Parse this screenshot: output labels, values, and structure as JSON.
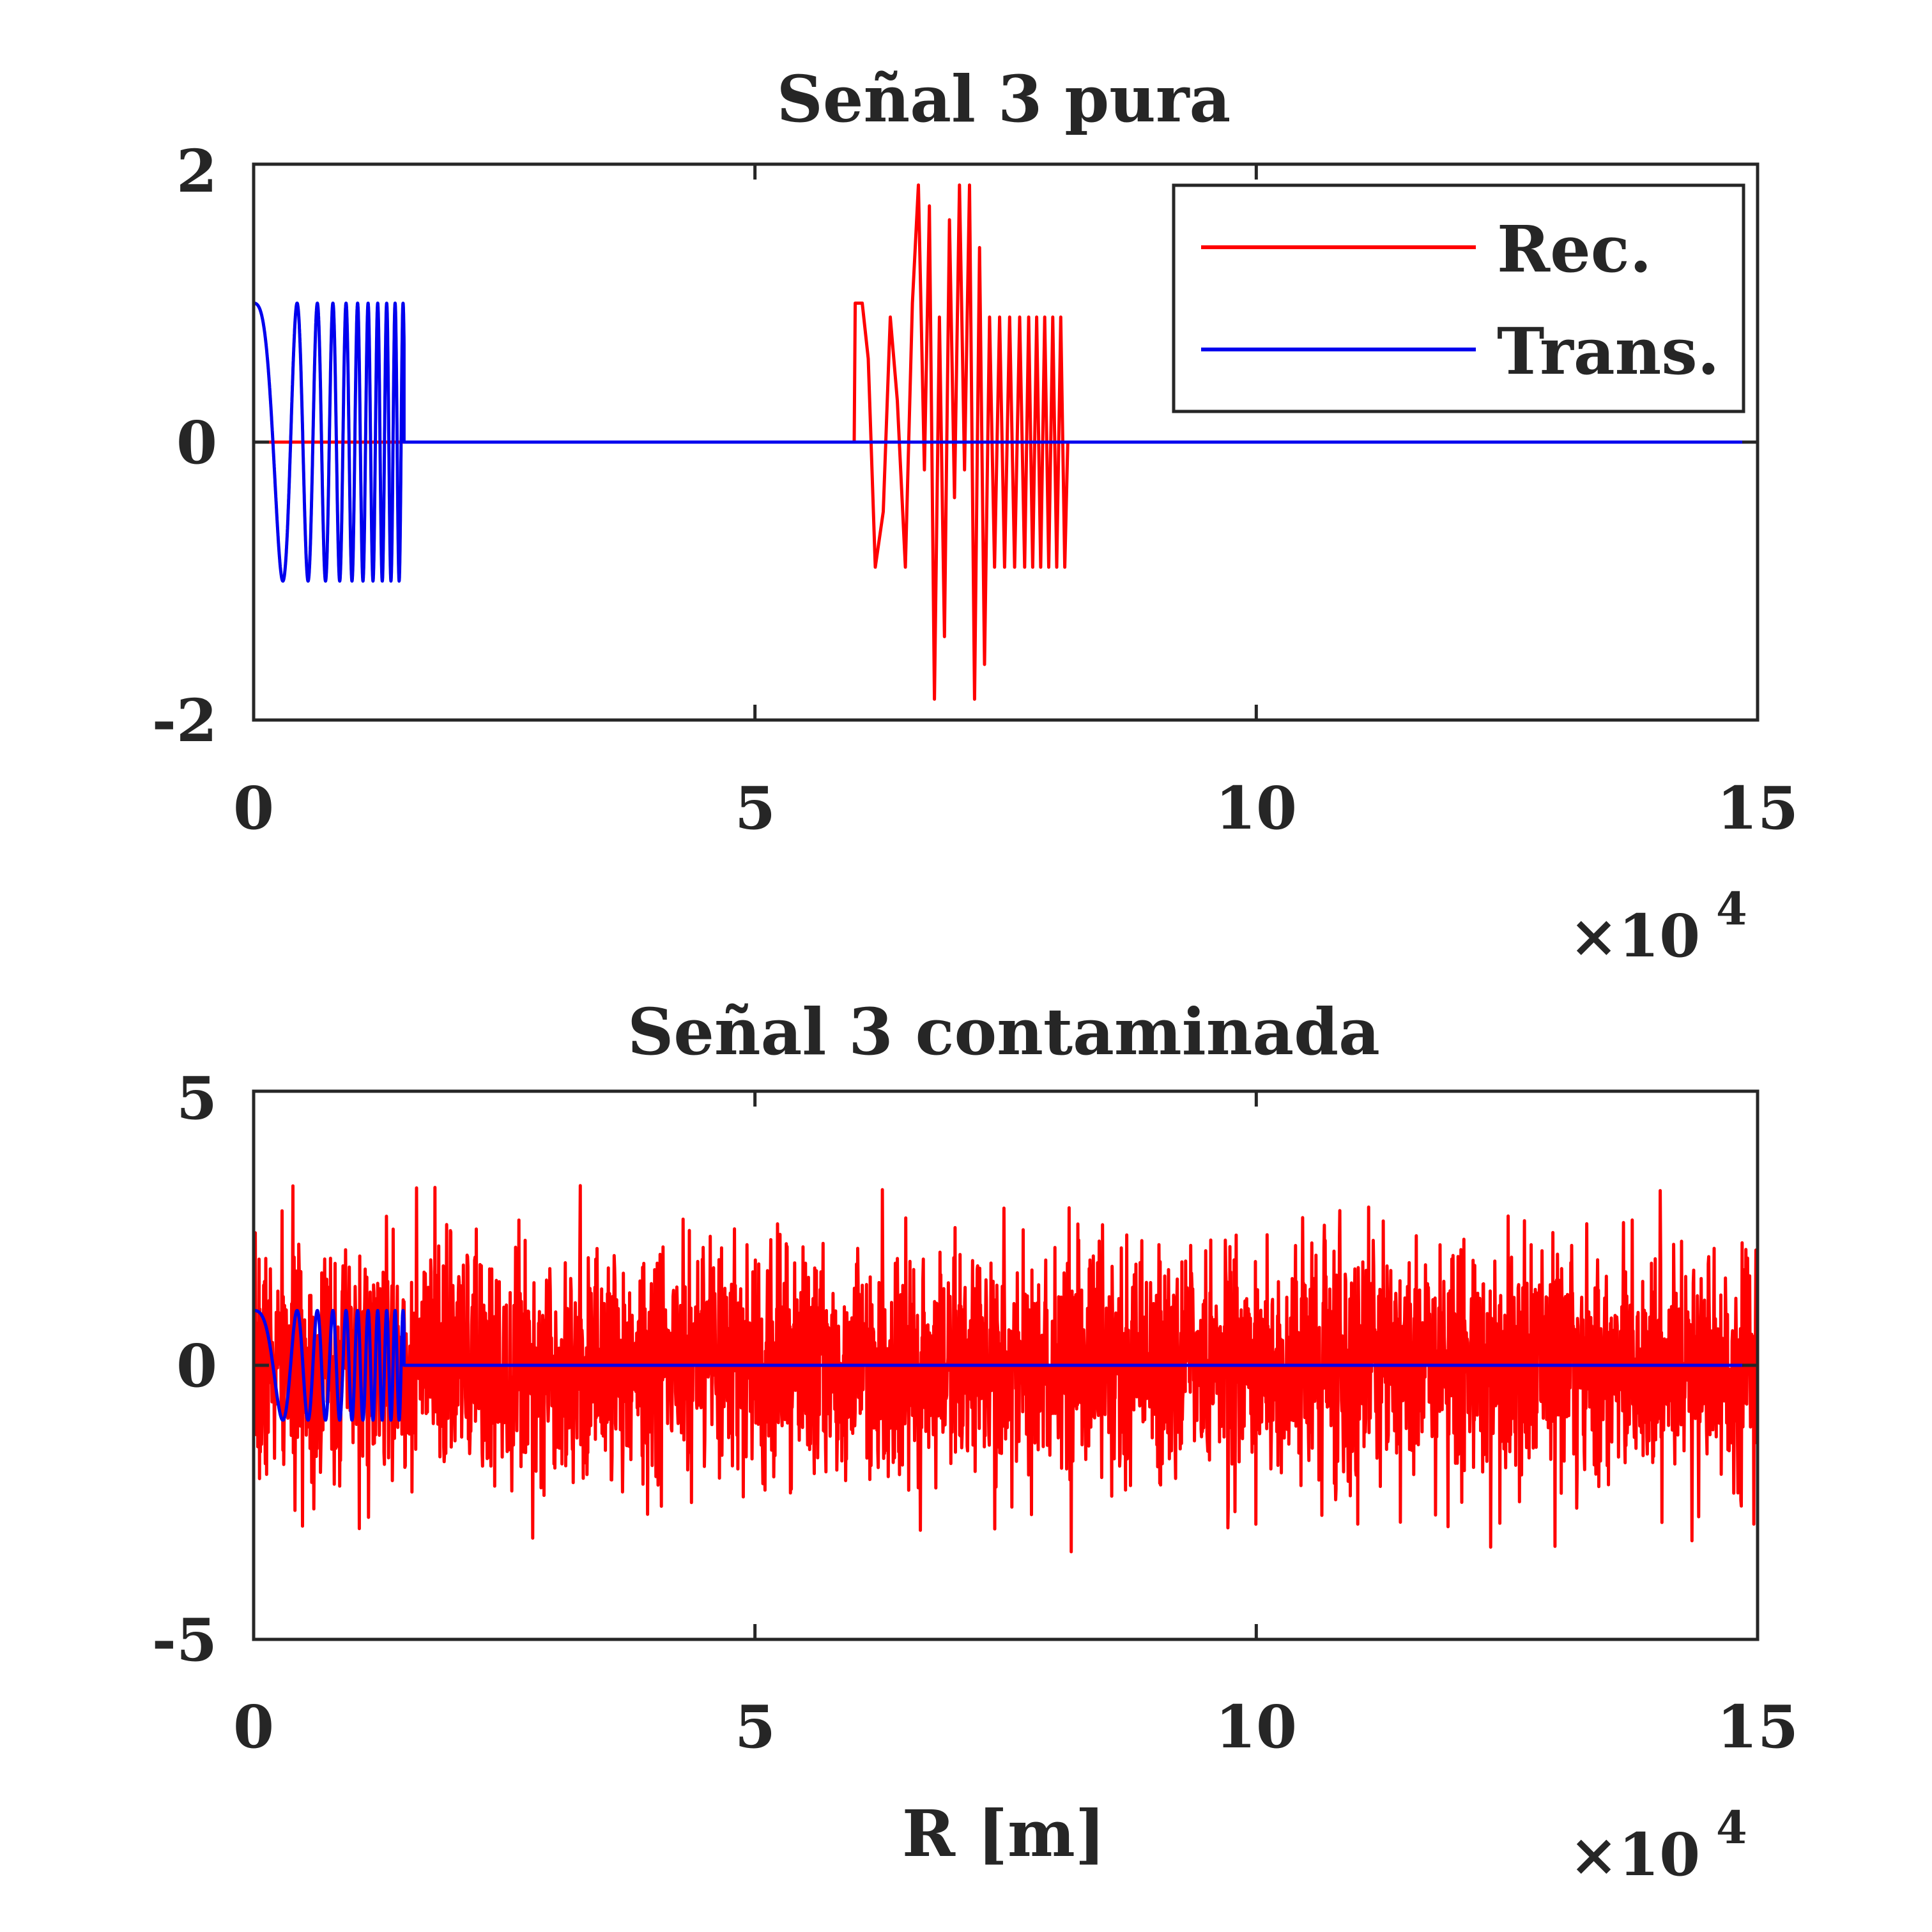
{
  "colors": {
    "rec": "#ff0000",
    "trans": "#0000ee",
    "axis": "#262626"
  },
  "chart_data": [
    {
      "type": "line",
      "title": "Señal 3 pura",
      "xlabel": "",
      "ylabel": "",
      "xlim": [
        0,
        150000
      ],
      "ylim": [
        -2,
        2
      ],
      "xticks": [
        0,
        50000,
        100000,
        150000
      ],
      "xtick_labels": [
        "0",
        "5",
        "10",
        "15"
      ],
      "yticks": [
        -2,
        0,
        2
      ],
      "ytick_labels": [
        "-2",
        "0",
        "2"
      ],
      "x_exponent": "×10",
      "x_exponent_power": "4",
      "legend": {
        "position": "top-right",
        "entries": [
          "Rec.",
          "Trans."
        ]
      },
      "series": [
        {
          "name": "Rec.",
          "color": "#ff0000",
          "x": [
            0,
            59900,
            60000,
            60700,
            61300,
            62000,
            62800,
            63500,
            64200,
            65000,
            65700,
            66300,
            66900,
            67400,
            67900,
            68400,
            68900,
            69400,
            69900,
            70400,
            70900,
            71400,
            71900,
            72400,
            72900,
            73400,
            73900,
            74400,
            74900,
            75400,
            75900,
            76400,
            76900,
            77300,
            77700,
            78100,
            78500,
            78900,
            79300,
            79700,
            80100,
            80500,
            80900,
            81200,
            150000
          ],
          "y": [
            0,
            0,
            1.0,
            1.0,
            0.6,
            -0.9,
            -0.5,
            0.9,
            0.3,
            -0.9,
            1.0,
            1.85,
            -0.2,
            1.7,
            -1.85,
            0.9,
            -1.4,
            1.6,
            -0.4,
            1.85,
            -0.2,
            1.85,
            -1.85,
            1.4,
            -1.6,
            0.9,
            -0.9,
            0.9,
            -0.9,
            0.9,
            -0.9,
            0.9,
            -0.9,
            0.9,
            -0.9,
            0.9,
            -0.9,
            0.9,
            -0.9,
            0.9,
            -0.9,
            0.9,
            -0.9,
            0,
            0
          ]
        },
        {
          "name": "Trans.",
          "color": "#0000ee",
          "generator": "chirp",
          "chirp": {
            "start": 0,
            "end": 15000,
            "amplitude": 1,
            "f0": 5e-05,
            "f1": 0.0013
          },
          "x_after": [
            15000,
            150000
          ],
          "y_after": [
            0,
            0
          ]
        }
      ]
    },
    {
      "type": "line",
      "title": "Señal 3 contaminada",
      "xlabel": "R [m]",
      "ylabel": "",
      "xlim": [
        0,
        150000
      ],
      "ylim": [
        -5,
        5
      ],
      "xticks": [
        0,
        50000,
        100000,
        150000
      ],
      "xtick_labels": [
        "0",
        "5",
        "10",
        "15"
      ],
      "yticks": [
        -5,
        0,
        5
      ],
      "ytick_labels": [
        "-5",
        "0",
        "5"
      ],
      "x_exponent": "×10",
      "x_exponent_power": "4",
      "series": [
        {
          "name": "Rec.",
          "color": "#ff0000",
          "generator": "noise",
          "noise": {
            "start": 0,
            "end": 150000,
            "samples": 3600,
            "std": 1.05,
            "clip": 4.0,
            "seed": 7
          }
        },
        {
          "name": "Trans.",
          "color": "#0000ee",
          "generator": "chirp",
          "chirp": {
            "start": 0,
            "end": 15000,
            "amplitude": 1,
            "f0": 5e-05,
            "f1": 0.0013
          },
          "x_after": [
            15000,
            150000
          ],
          "y_after": [
            0,
            0
          ]
        }
      ]
    }
  ]
}
